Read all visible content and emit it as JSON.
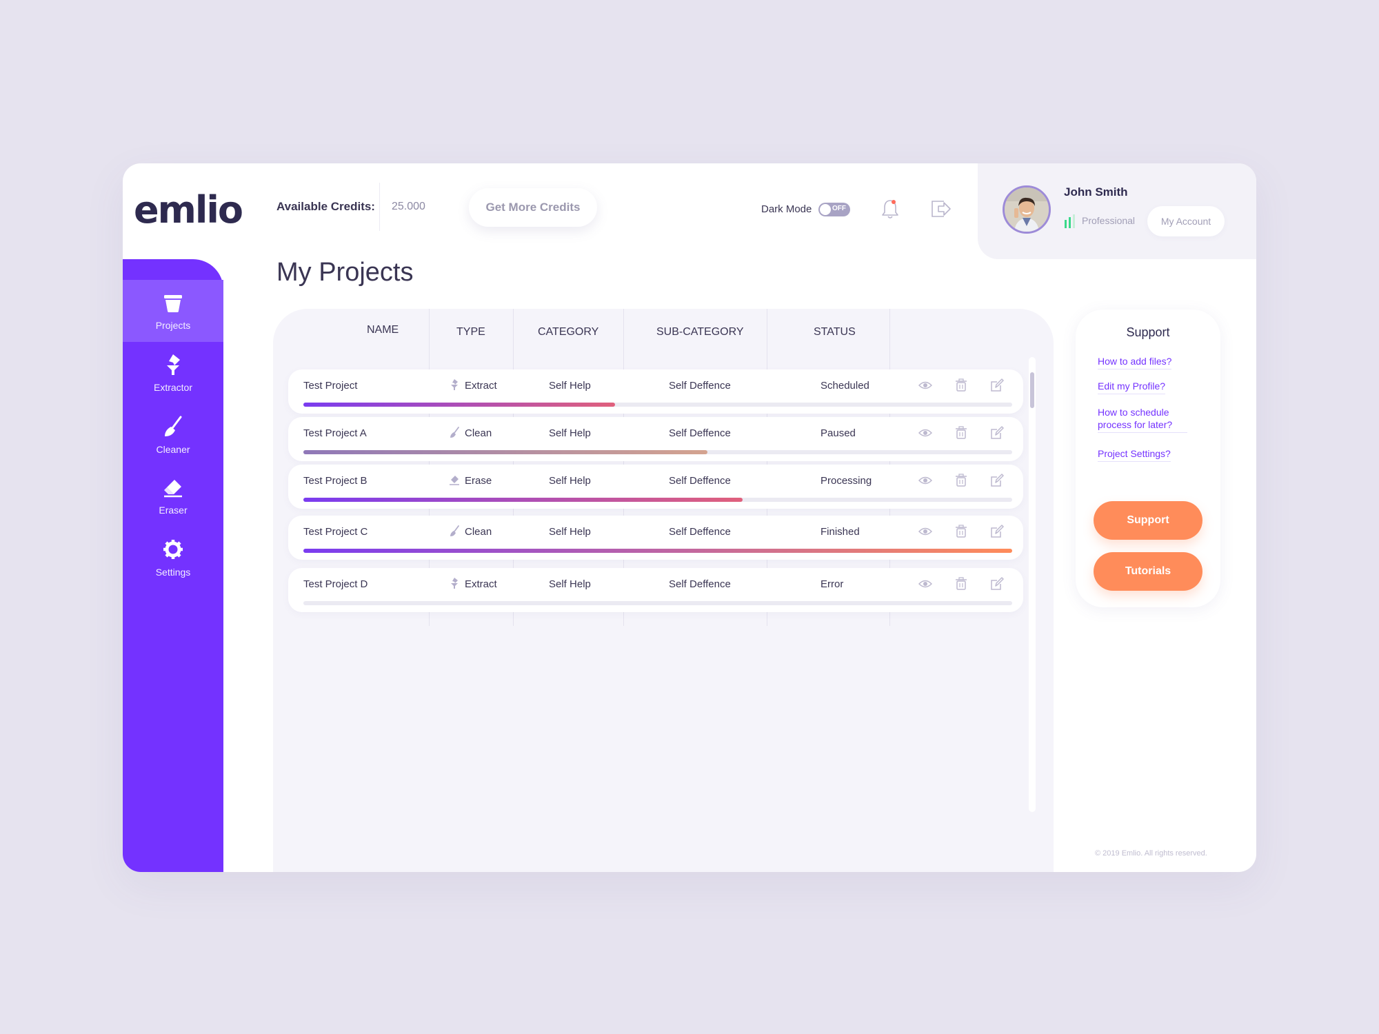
{
  "brand": {
    "logo_text": "emlio"
  },
  "header": {
    "credits_label": "Available Credits:",
    "credits_value": "25.000",
    "get_more_label": "Get More Credits",
    "dark_mode_label": "Dark Mode",
    "dark_mode_state": "OFF"
  },
  "user": {
    "name": "John Smith",
    "plan": "Professional",
    "account_label": "My Account"
  },
  "sidebar": {
    "items": [
      {
        "label": "Projects",
        "icon": "projects-icon",
        "active": true
      },
      {
        "label": "Extractor",
        "icon": "extractor-icon"
      },
      {
        "label": "Cleaner",
        "icon": "broom-icon"
      },
      {
        "label": "Eraser",
        "icon": "eraser-icon"
      },
      {
        "label": "Settings",
        "icon": "gear-icon"
      }
    ]
  },
  "page": {
    "title": "My Projects"
  },
  "table": {
    "headers": {
      "name": "NAME",
      "type": "TYPE",
      "category": "CATEGORY",
      "subcategory": "SUB-CATEGORY",
      "status": "STATUS"
    },
    "rows": [
      {
        "name": "Test Project",
        "type": "Extract",
        "category": "Self Help",
        "subcategory": "Self Deffence",
        "status": "Scheduled",
        "progress": 0.44
      },
      {
        "name": "Test Project A",
        "type": "Clean",
        "category": "Self Help",
        "subcategory": "Self Deffence",
        "status": "Paused",
        "progress": 0.57
      },
      {
        "name": "Test Project B",
        "type": "Erase",
        "category": "Self Help",
        "subcategory": "Self Deffence",
        "status": "Processing",
        "progress": 0.62
      },
      {
        "name": "Test Project C",
        "type": "Clean",
        "category": "Self Help",
        "subcategory": "Self Deffence",
        "status": "Finished",
        "progress": 1.0
      },
      {
        "name": "Test Project D",
        "type": "Extract",
        "category": "Self Help",
        "subcategory": "Self Deffence",
        "status": "Error",
        "progress": 0.0
      }
    ]
  },
  "support": {
    "title": "Support",
    "links": [
      "How to add files?",
      "Edit my Profile?",
      "How to schedule process for later?",
      "Project Settings?"
    ],
    "support_button": "Support",
    "tutorials_button": "Tutorials"
  },
  "footer": {
    "copyright": "© 2019 Emlio. All rights reserved."
  },
  "colors": {
    "sidebar": "#7432ff",
    "accent": "#ff8c5a",
    "progress_default": [
      "#7a3cf0",
      "#e0607c"
    ],
    "progress_paused": [
      "#8f78b8",
      "#d4a38f"
    ],
    "progress_finished": [
      "#7a3cf0",
      "#ff8c5a"
    ]
  }
}
